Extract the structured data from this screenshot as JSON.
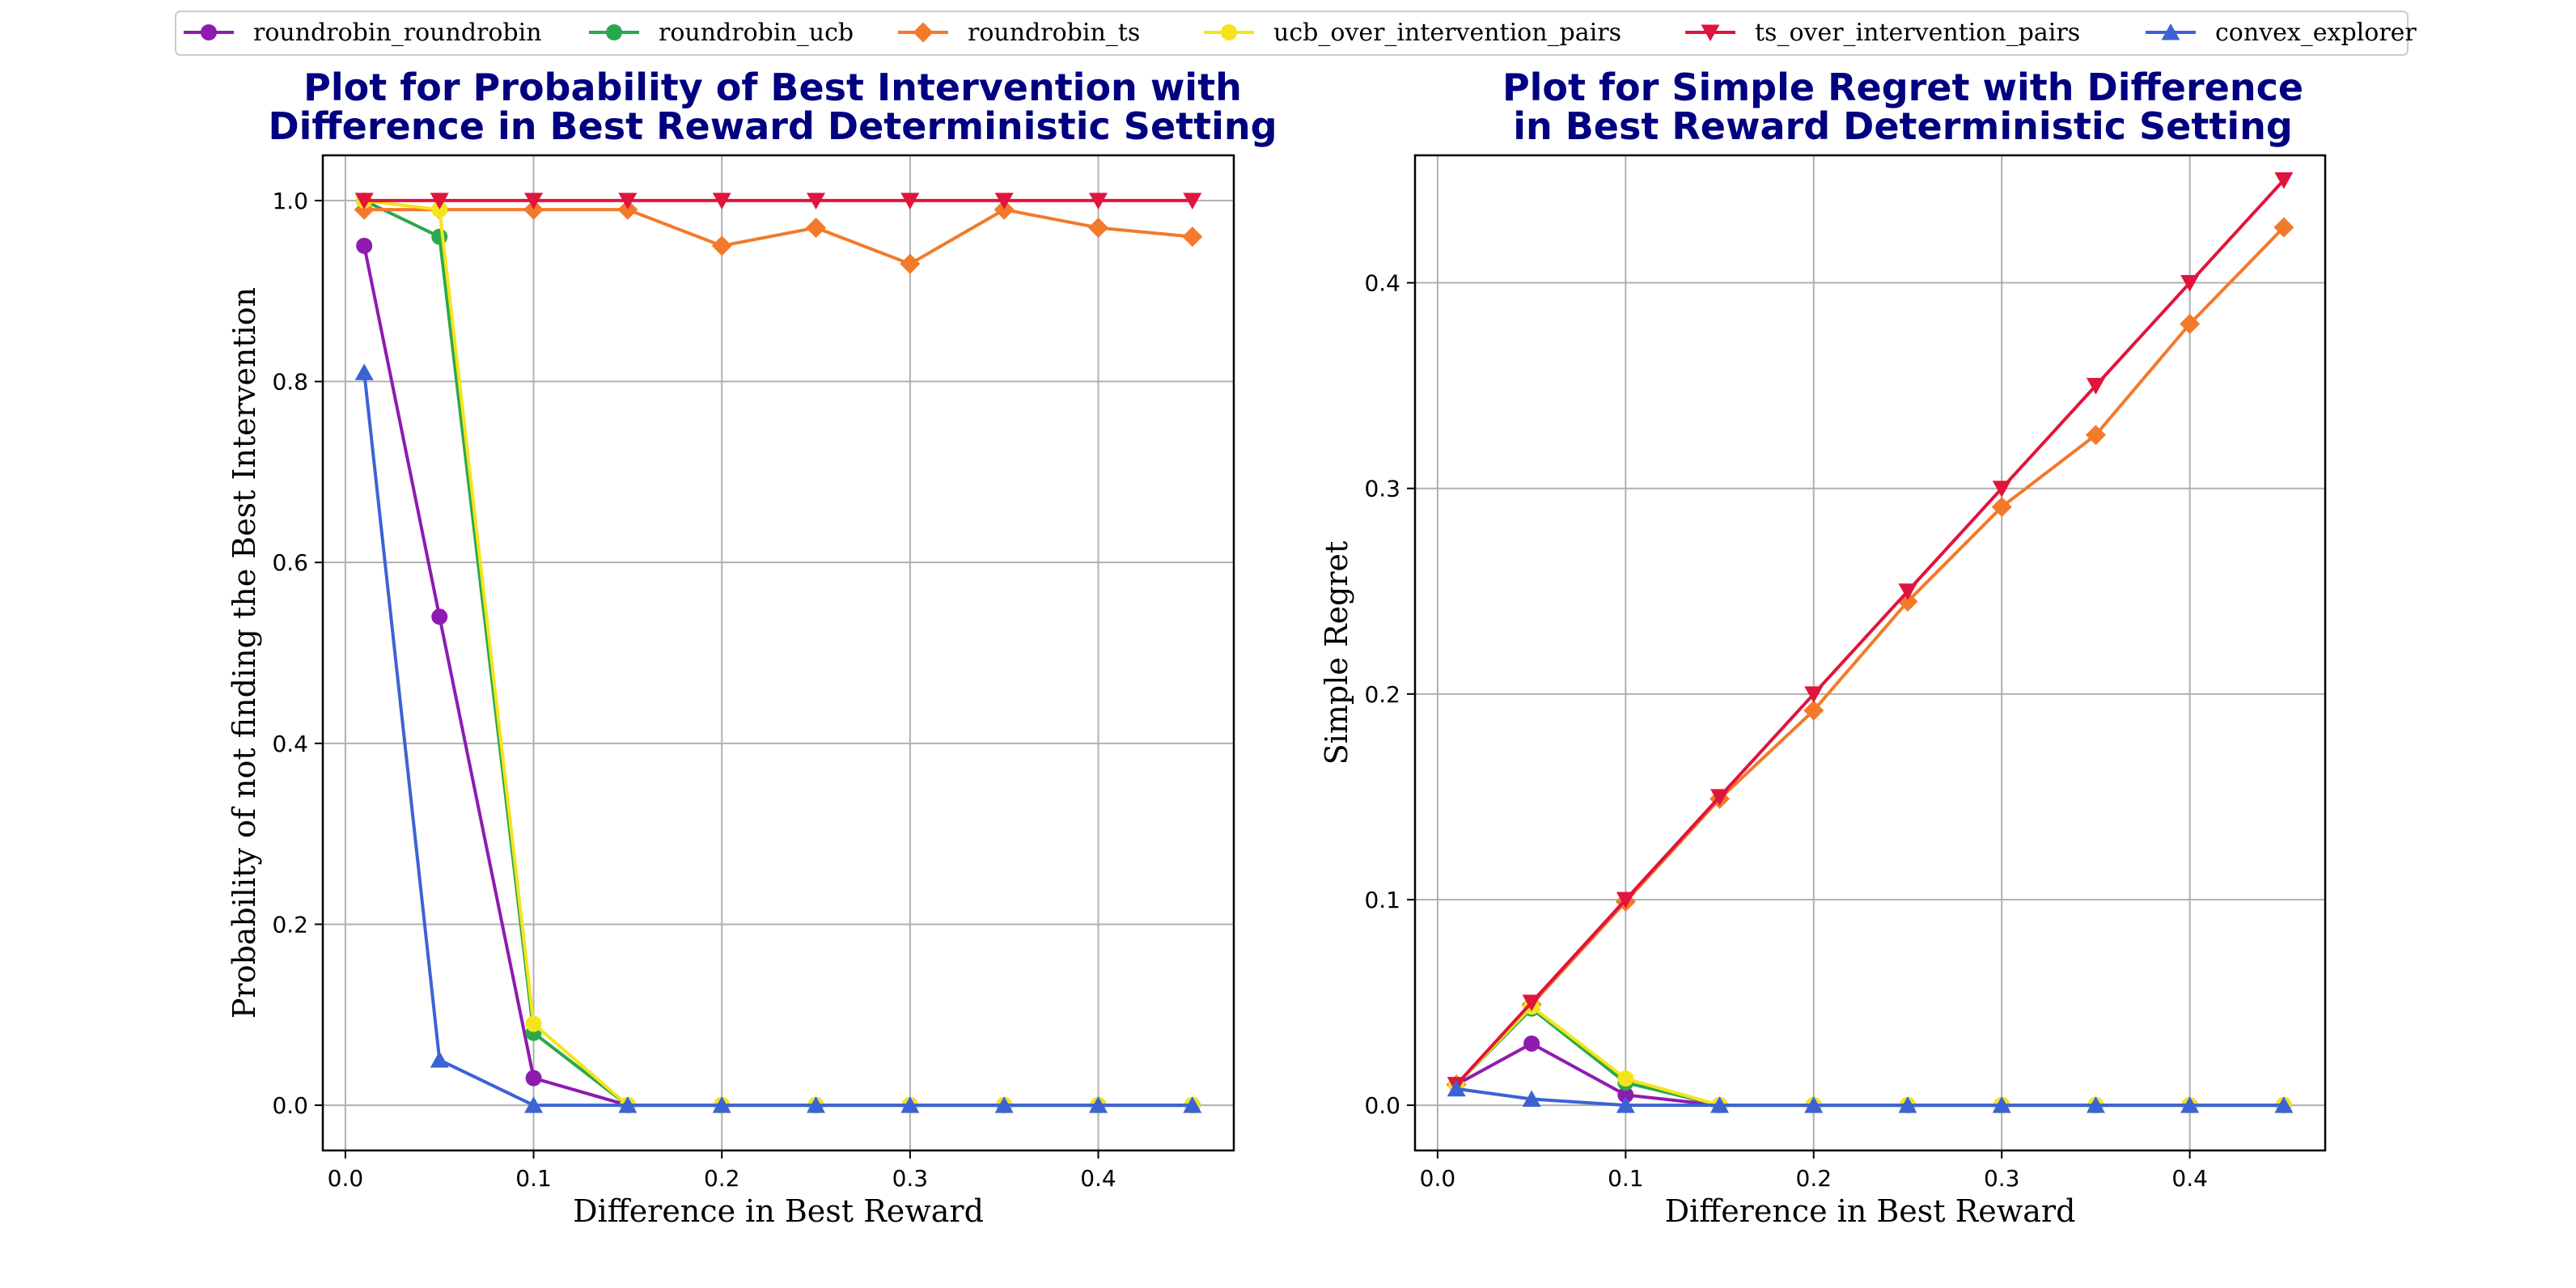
{
  "legend": {
    "placement": "top-center",
    "entries": [
      {
        "label": "roundrobin_roundrobin",
        "color": "#8e1bb0",
        "marker": "circle"
      },
      {
        "label": "roundrobin_ucb",
        "color": "#2ca84c",
        "marker": "circle"
      },
      {
        "label": "roundrobin_ts",
        "color": "#f27a2a",
        "marker": "diamond"
      },
      {
        "label": "ucb_over_intervention_pairs",
        "color": "#f5e41b",
        "marker": "circle"
      },
      {
        "label": "ts_over_intervention_pairs",
        "color": "#e0143c",
        "marker": "triangle-down"
      },
      {
        "label": "convex_explorer",
        "color": "#3b63d6",
        "marker": "triangle-up"
      }
    ]
  },
  "chart_data": [
    {
      "type": "line",
      "title_lines": [
        "Plot for Probability of Best Intervention with",
        "Difference in Best Reward Deterministic Setting"
      ],
      "xlabel": "Difference in Best Reward",
      "ylabel": "Probability of not finding the Best Intervention",
      "xlim": [
        -0.012,
        0.472
      ],
      "ylim": [
        -0.05,
        1.05
      ],
      "xticks": [
        0.0,
        0.1,
        0.2,
        0.3,
        0.4
      ],
      "xtick_labels": [
        "0.0",
        "0.1",
        "0.2",
        "0.3",
        "0.4"
      ],
      "yticks": [
        0.0,
        0.2,
        0.4,
        0.6,
        0.8,
        1.0
      ],
      "ytick_labels": [
        "0.0",
        "0.2",
        "0.4",
        "0.6",
        "0.8",
        "1.0"
      ],
      "grid": true,
      "x": [
        0.01,
        0.05,
        0.1,
        0.15,
        0.2,
        0.25,
        0.3,
        0.35,
        0.4,
        0.45
      ],
      "series": [
        {
          "name": "roundrobin_roundrobin",
          "values": [
            0.95,
            0.54,
            0.03,
            0,
            0,
            0,
            0,
            0,
            0,
            0
          ]
        },
        {
          "name": "roundrobin_ucb",
          "values": [
            1.0,
            0.96,
            0.08,
            0,
            0,
            0,
            0,
            0,
            0,
            0
          ]
        },
        {
          "name": "roundrobin_ts",
          "values": [
            0.99,
            0.99,
            0.99,
            0.99,
            0.95,
            0.97,
            0.93,
            0.99,
            0.97,
            0.96
          ]
        },
        {
          "name": "ucb_over_intervention_pairs",
          "values": [
            1.0,
            0.99,
            0.09,
            0,
            0,
            0,
            0,
            0,
            0,
            0
          ]
        },
        {
          "name": "ts_over_intervention_pairs",
          "values": [
            1.0,
            1.0,
            1.0,
            1.0,
            1.0,
            1.0,
            1.0,
            1.0,
            1.0,
            1.0
          ]
        },
        {
          "name": "convex_explorer",
          "values": [
            0.81,
            0.05,
            0,
            0,
            0,
            0,
            0,
            0,
            0,
            0
          ]
        }
      ]
    },
    {
      "type": "line",
      "title_lines": [
        "Plot for Simple Regret with Difference",
        "in Best Reward Deterministic Setting"
      ],
      "xlabel": "Difference in Best Reward",
      "ylabel": "Simple Regret",
      "xlim": [
        -0.012,
        0.472
      ],
      "ylim": [
        -0.022,
        0.462
      ],
      "xticks": [
        0.0,
        0.1,
        0.2,
        0.3,
        0.4
      ],
      "xtick_labels": [
        "0.0",
        "0.1",
        "0.2",
        "0.3",
        "0.4"
      ],
      "yticks": [
        0.0,
        0.1,
        0.2,
        0.3,
        0.4
      ],
      "ytick_labels": [
        "0.0",
        "0.1",
        "0.2",
        "0.3",
        "0.4"
      ],
      "grid": true,
      "x": [
        0.01,
        0.05,
        0.1,
        0.15,
        0.2,
        0.25,
        0.3,
        0.35,
        0.4,
        0.45
      ],
      "series": [
        {
          "name": "roundrobin_roundrobin",
          "values": [
            0.01,
            0.03,
            0.005,
            0,
            0,
            0,
            0,
            0,
            0,
            0
          ]
        },
        {
          "name": "roundrobin_ucb",
          "values": [
            0.01,
            0.047,
            0.011,
            0,
            0,
            0,
            0,
            0,
            0,
            0
          ]
        },
        {
          "name": "roundrobin_ts",
          "values": [
            0.01,
            0.049,
            0.099,
            0.149,
            0.192,
            0.245,
            0.291,
            0.326,
            0.38,
            0.427
          ]
        },
        {
          "name": "ucb_over_intervention_pairs",
          "values": [
            0.01,
            0.048,
            0.013,
            0,
            0,
            0,
            0,
            0,
            0,
            0
          ]
        },
        {
          "name": "ts_over_intervention_pairs",
          "values": [
            0.01,
            0.05,
            0.1,
            0.15,
            0.2,
            0.25,
            0.3,
            0.35,
            0.4,
            0.45
          ]
        },
        {
          "name": "convex_explorer",
          "values": [
            0.008,
            0.003,
            0,
            0,
            0,
            0,
            0,
            0,
            0,
            0
          ]
        }
      ]
    }
  ]
}
